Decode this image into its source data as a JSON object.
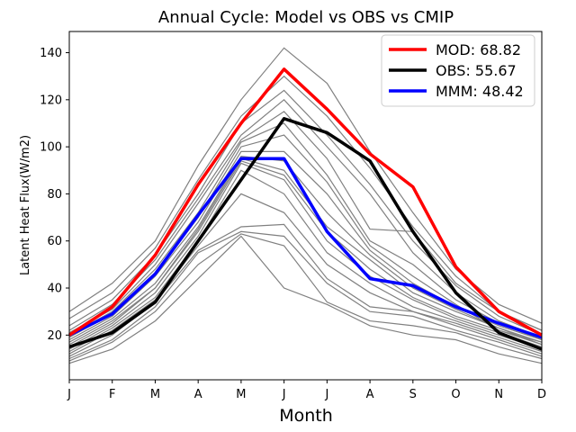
{
  "chart_data": {
    "type": "line",
    "title": "Annual Cycle: Model vs OBS vs CMIP",
    "xlabel": "Month",
    "ylabel": "Latent Heat Flux(W/m2)",
    "categories": [
      "J",
      "F",
      "M",
      "A",
      "M",
      "J",
      "J",
      "A",
      "S",
      "O",
      "N",
      "D"
    ],
    "ylim": [
      1,
      149
    ],
    "yticks": [
      20,
      40,
      60,
      80,
      100,
      120,
      140
    ],
    "legend_position": "top-right",
    "series": [
      {
        "name": "MOD: 68.82",
        "color": "#ff0000",
        "values": [
          20,
          32,
          54,
          84,
          110,
          133,
          116,
          97,
          83,
          49,
          30,
          20
        ]
      },
      {
        "name": "OBS: 55.67",
        "color": "#000000",
        "values": [
          15,
          21,
          34,
          60,
          86,
          112,
          106,
          94,
          64,
          38,
          21,
          14
        ]
      },
      {
        "name": "MMM: 48.42",
        "color": "#0000ff",
        "values": [
          20,
          29,
          46,
          71,
          95,
          95,
          64,
          44,
          41,
          32,
          25,
          19
        ]
      }
    ],
    "background_models": {
      "color": "#808080",
      "series": [
        [
          30,
          42,
          60,
          92,
          120,
          142,
          127,
          98,
          72,
          48,
          33,
          25
        ],
        [
          27,
          38,
          57,
          86,
          113,
          130,
          113,
          91,
          66,
          45,
          30,
          22
        ],
        [
          24,
          35,
          54,
          80,
          110,
          124,
          105,
          84,
          60,
          41,
          28,
          20
        ],
        [
          22,
          33,
          52,
          78,
          105,
          120,
          100,
          80,
          55,
          38,
          26,
          19
        ],
        [
          21,
          31,
          50,
          76,
          103,
          115,
          95,
          65,
          64,
          42,
          30,
          22
        ],
        [
          20,
          30,
          48,
          72,
          102,
          110,
          88,
          60,
          50,
          35,
          25,
          18
        ],
        [
          19,
          29,
          46,
          70,
          100,
          105,
          85,
          58,
          45,
          33,
          22,
          17
        ],
        [
          18,
          28,
          45,
          68,
          98,
          98,
          80,
          56,
          42,
          32,
          24,
          18
        ],
        [
          17,
          27,
          42,
          66,
          96,
          94,
          72,
          54,
          40,
          31,
          23,
          17
        ],
        [
          16,
          26,
          40,
          65,
          95,
          90,
          66,
          52,
          38,
          30,
          23,
          16
        ],
        [
          15,
          25,
          40,
          64,
          94,
          88,
          64,
          48,
          36,
          28,
          22,
          16
        ],
        [
          14,
          24,
          38,
          62,
          93,
          86,
          60,
          45,
          35,
          27,
          21,
          15
        ],
        [
          13,
          23,
          36,
          60,
          90,
          80,
          55,
          42,
          32,
          26,
          20,
          14
        ],
        [
          12,
          22,
          35,
          58,
          80,
          72,
          50,
          38,
          30,
          25,
          19,
          13
        ],
        [
          11,
          20,
          34,
          56,
          66,
          67,
          44,
          32,
          30,
          24,
          18,
          12
        ],
        [
          10,
          18,
          32,
          55,
          64,
          62,
          42,
          30,
          28,
          22,
          17,
          11
        ],
        [
          9,
          17,
          30,
          50,
          63,
          58,
          34,
          26,
          24,
          21,
          15,
          10
        ],
        [
          8,
          14,
          26,
          44,
          62,
          40,
          33,
          24,
          20,
          18,
          12,
          8
        ]
      ]
    }
  }
}
